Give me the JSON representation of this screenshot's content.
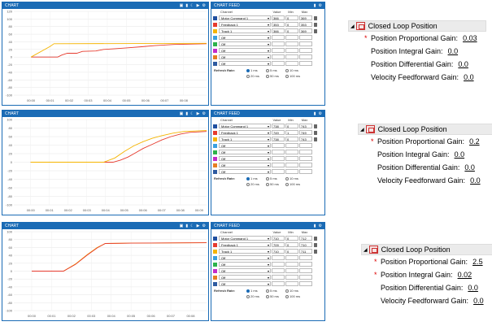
{
  "chart_panel": {
    "title": "CHART",
    "toolbar_icons": [
      "save-icon",
      "delete-icon",
      "moon-icon",
      "play-icon",
      "gear-icon"
    ]
  },
  "feed_panel": {
    "title": "CHART FEED",
    "columns": [
      "Channel",
      "Value",
      "Min",
      "Max"
    ],
    "refresh_label": "Refresh Rate:",
    "refresh_options": [
      "1 ms",
      "5 ms",
      "10 ms",
      "20 ms",
      "50 ms",
      "100 ms"
    ],
    "refresh_selected": "1 ms",
    "off_label": "Off",
    "channel_colors": [
      "#1f4fa0",
      "#e63b2e",
      "#f5b400",
      "#3aa0e0",
      "#2db34a",
      "#c52ac9",
      "#e67e22",
      "#2d5aa0"
    ]
  },
  "snapshots": [
    {
      "chart_data": {
        "type": "line",
        "y_ticks": [
          "120",
          "100",
          "80",
          "60",
          "40",
          "20",
          "0",
          "-20",
          "-40",
          "-60",
          "-80",
          "-100"
        ],
        "x_ticks": [
          "00:00",
          "00:01",
          "00:02",
          "00:03",
          "00:04",
          "00:05",
          "00:06",
          "00:07",
          "00:08"
        ],
        "ylim": [
          -100,
          120
        ],
        "xlim": [
          -0.9,
          9.2
        ],
        "series": [
          {
            "color": "#e63b2e",
            "points": [
              [
                0,
                0
              ],
              [
                1.4,
                0
              ],
              [
                1.6,
                5
              ],
              [
                1.9,
                10
              ],
              [
                2.4,
                10
              ],
              [
                2.7,
                15
              ],
              [
                3.4,
                16
              ],
              [
                3.8,
                20
              ],
              [
                4.4,
                22
              ],
              [
                5,
                24
              ],
              [
                5.8,
                27
              ],
              [
                6.5,
                30
              ],
              [
                7.5,
                33
              ],
              [
                9.2,
                35
              ]
            ]
          },
          {
            "color": "#f5b400",
            "points": [
              [
                0,
                0
              ],
              [
                1,
                28
              ],
              [
                1.2,
                35
              ],
              [
                9.2,
                36
              ]
            ]
          }
        ]
      },
      "feed": [
        {
          "channel": "Motor Command 1",
          "value": "366",
          "min": "0",
          "max": "369"
        },
        {
          "channel": "Feedback 1",
          "value": "353",
          "min": "0",
          "max": "353"
        },
        {
          "channel": "Track 1",
          "value": "366",
          "min": "0",
          "max": "369"
        }
      ],
      "properties": {
        "header": "Closed Loop Position",
        "rows": [
          {
            "label": "Position Proportional Gain:",
            "value": "0.03",
            "modified": true
          },
          {
            "label": "Position Integral Gain:",
            "value": "0.0",
            "modified": false
          },
          {
            "label": "Position Differential Gain:",
            "value": "0.0",
            "modified": false
          },
          {
            "label": "Velocity Feedforward Gain:",
            "value": "0.0",
            "modified": false
          }
        ]
      }
    },
    {
      "chart_data": {
        "type": "line",
        "y_ticks": [
          "100",
          "80",
          "60",
          "40",
          "20",
          "0",
          "-20",
          "-40",
          "-60",
          "-80",
          "-100"
        ],
        "x_ticks": [
          "00:00",
          "00:01",
          "00:02",
          "00:03",
          "00:04",
          "00:05",
          "00:06",
          "00:07",
          "00:08",
          "00:09"
        ],
        "ylim": [
          -100,
          100
        ],
        "xlim": [
          -0.9,
          9.4
        ],
        "series": [
          {
            "color": "#e63b2e",
            "points": [
              [
                0,
                0
              ],
              [
                4.4,
                0
              ],
              [
                4.8,
                5
              ],
              [
                5.2,
                12
              ],
              [
                5.6,
                22
              ],
              [
                6,
                32
              ],
              [
                6.5,
                42
              ],
              [
                7,
                52
              ],
              [
                7.5,
                60
              ],
              [
                8,
                66
              ],
              [
                8.5,
                70
              ],
              [
                9.4,
                72
              ]
            ]
          },
          {
            "color": "#f5b400",
            "points": [
              [
                0,
                0
              ],
              [
                3.9,
                0
              ],
              [
                4.5,
                10
              ],
              [
                5,
                25
              ],
              [
                5.5,
                38
              ],
              [
                6,
                48
              ],
              [
                6.5,
                56
              ],
              [
                7,
                62
              ],
              [
                7.6,
                68
              ],
              [
                8.2,
                72
              ],
              [
                9.4,
                74
              ]
            ]
          }
        ]
      },
      "feed": [
        {
          "channel": "Motor Command 1",
          "value": "738",
          "min": "0",
          "max": "743"
        },
        {
          "channel": "Feedback 1",
          "value": "749",
          "min": "1",
          "max": "749"
        },
        {
          "channel": "Track 1",
          "value": "738",
          "min": "0",
          "max": "743"
        }
      ],
      "properties": {
        "header": "Closed Loop Position",
        "rows": [
          {
            "label": "Position Proportional Gain:",
            "value": "0.2",
            "modified": true
          },
          {
            "label": "Position Integral Gain:",
            "value": "0.0",
            "modified": false
          },
          {
            "label": "Position Differential Gain:",
            "value": "0.0",
            "modified": false
          },
          {
            "label": "Velocity Feedforward Gain:",
            "value": "0.0",
            "modified": false
          }
        ]
      }
    },
    {
      "chart_data": {
        "type": "line",
        "y_ticks": [
          "100",
          "80",
          "60",
          "40",
          "20",
          "0",
          "-20",
          "-40",
          "-60",
          "-80",
          "-100"
        ],
        "x_ticks": [
          "00:00",
          "00:01",
          "00:02",
          "00:03",
          "00:04",
          "00:05",
          "00:06",
          "00:07",
          "00:08"
        ],
        "ylim": [
          -100,
          100
        ],
        "xlim": [
          -0.9,
          8.8
        ],
        "series": [
          {
            "color": "#f5b400",
            "points": [
              [
                0,
                0
              ],
              [
                1.6,
                0
              ],
              [
                2.2,
                18
              ],
              [
                2.8,
                42
              ],
              [
                3.3,
                60
              ],
              [
                3.7,
                70
              ],
              [
                5,
                71
              ],
              [
                8.8,
                72
              ]
            ]
          },
          {
            "color": "#e63b2e",
            "points": [
              [
                0,
                0
              ],
              [
                1.6,
                0
              ],
              [
                2.2,
                17
              ],
              [
                2.8,
                41
              ],
              [
                3.3,
                59
              ],
              [
                3.7,
                70
              ],
              [
                5,
                71
              ],
              [
                8.8,
                72
              ]
            ]
          }
        ]
      },
      "feed": [
        {
          "channel": "Motor Command 1",
          "value": "710",
          "min": "0",
          "max": "712"
        },
        {
          "channel": "Feedback 1",
          "value": "709",
          "min": "0",
          "max": "710"
        },
        {
          "channel": "Track 1",
          "value": "710",
          "min": "0",
          "max": "711"
        }
      ],
      "properties": {
        "header": "Closed Loop Position",
        "rows": [
          {
            "label": "Position Proportional Gain:",
            "value": "2.5",
            "modified": true
          },
          {
            "label": "Position Integral Gain:",
            "value": "0.02",
            "modified": true
          },
          {
            "label": "Position Differential Gain:",
            "value": "0.0",
            "modified": false
          },
          {
            "label": "Velocity Feedforward Gain:",
            "value": "0.0",
            "modified": false
          }
        ]
      }
    }
  ]
}
